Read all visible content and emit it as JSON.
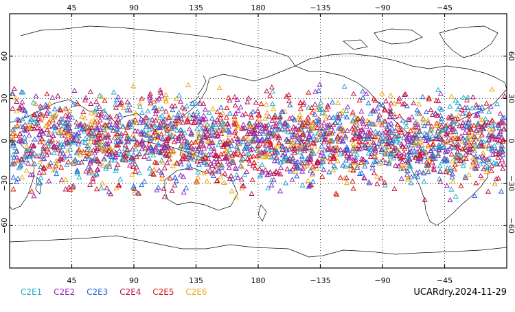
{
  "map": {
    "projection": "cylindrical-equidistant",
    "center_longitude": 180,
    "longitude_range": [
      0,
      360
    ],
    "latitude_range": [
      -90,
      90
    ],
    "lon_tick_labels": [
      "45",
      "90",
      "135",
      "180",
      "−135",
      "−90",
      "−45"
    ],
    "lon_tick_values": [
      45,
      90,
      135,
      180,
      225,
      270,
      315
    ],
    "lat_tick_labels": [
      "60",
      "30",
      "0",
      "−30",
      "−60"
    ],
    "lat_tick_values": [
      60,
      30,
      0,
      -30,
      -60
    ],
    "gridlines": "dotted",
    "observation_latitude_band": [
      -45,
      45
    ],
    "marker": "triangle-outline"
  },
  "legend": [
    {
      "label": "C2E1",
      "color": "#22aacc"
    },
    {
      "label": "C2E2",
      "color": "#9922bb"
    },
    {
      "label": "C2E3",
      "color": "#2266dd"
    },
    {
      "label": "C2E4",
      "color": "#bb1155"
    },
    {
      "label": "C2E5",
      "color": "#dd1111"
    },
    {
      "label": "C2E6",
      "color": "#eeaa11"
    }
  ],
  "timestamp": "UCARdry.2024-11-29"
}
